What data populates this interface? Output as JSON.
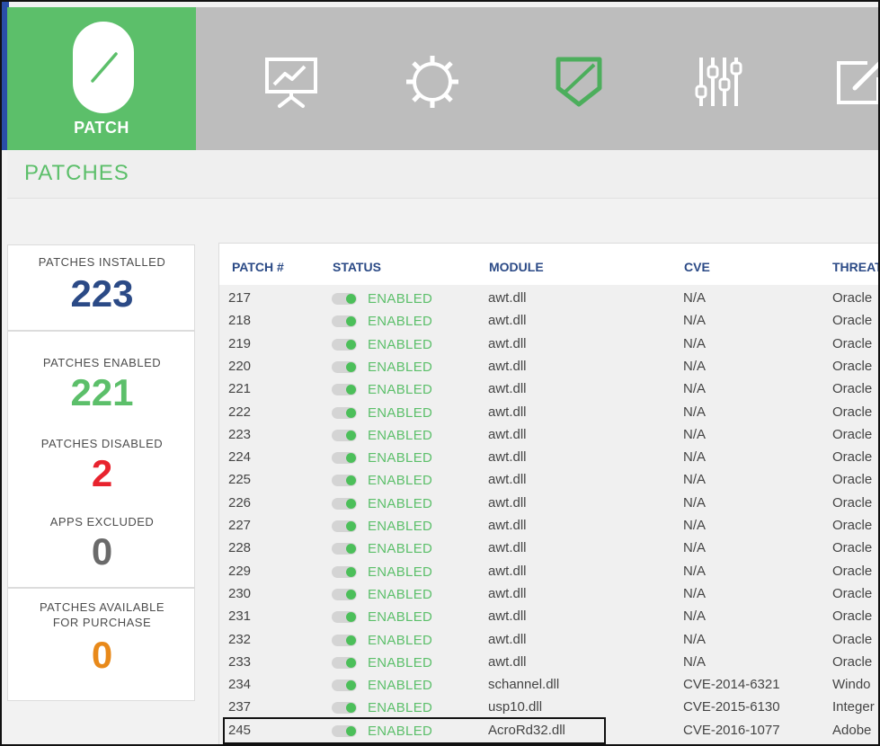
{
  "brand": {
    "label": "PATCH",
    "icon": "slash-icon",
    "color": "#5cbf6a"
  },
  "nav": {
    "items": [
      {
        "name": "dashboard",
        "icon": "presentation-chart-icon"
      },
      {
        "name": "settings",
        "icon": "gear-icon"
      },
      {
        "name": "patch",
        "icon": "shield-slash-icon"
      },
      {
        "name": "controls",
        "icon": "sliders-icon"
      },
      {
        "name": "notes",
        "icon": "edit-icon"
      }
    ]
  },
  "page": {
    "title": "PATCHES"
  },
  "stats": {
    "installed": {
      "label": "PATCHES INSTALLED",
      "value": "223",
      "color": "#2b4a86"
    },
    "enabled": {
      "label": "PATCHES ENABLED",
      "value": "221",
      "color": "#5cbf6a"
    },
    "disabled": {
      "label": "PATCHES DISABLED",
      "value": "2",
      "color": "#e8232e"
    },
    "excluded": {
      "label": "APPS EXCLUDED",
      "value": "0",
      "color": "#6a6a6a"
    },
    "purchase": {
      "label_line1": "PATCHES AVAILABLE",
      "label_line2": "FOR PURCHASE",
      "value": "0",
      "color": "#e8891a"
    }
  },
  "table": {
    "columns": [
      "PATCH #",
      "STATUS",
      "MODULE",
      "CVE",
      "THREAT"
    ],
    "rows": [
      {
        "patch": "217",
        "status": "ENABLED",
        "module": "awt.dll",
        "cve": "N/A",
        "threat": "Oracle"
      },
      {
        "patch": "218",
        "status": "ENABLED",
        "module": "awt.dll",
        "cve": "N/A",
        "threat": "Oracle"
      },
      {
        "patch": "219",
        "status": "ENABLED",
        "module": "awt.dll",
        "cve": "N/A",
        "threat": "Oracle"
      },
      {
        "patch": "220",
        "status": "ENABLED",
        "module": "awt.dll",
        "cve": "N/A",
        "threat": "Oracle"
      },
      {
        "patch": "221",
        "status": "ENABLED",
        "module": "awt.dll",
        "cve": "N/A",
        "threat": "Oracle"
      },
      {
        "patch": "222",
        "status": "ENABLED",
        "module": "awt.dll",
        "cve": "N/A",
        "threat": "Oracle"
      },
      {
        "patch": "223",
        "status": "ENABLED",
        "module": "awt.dll",
        "cve": "N/A",
        "threat": "Oracle"
      },
      {
        "patch": "224",
        "status": "ENABLED",
        "module": "awt.dll",
        "cve": "N/A",
        "threat": "Oracle"
      },
      {
        "patch": "225",
        "status": "ENABLED",
        "module": "awt.dll",
        "cve": "N/A",
        "threat": "Oracle"
      },
      {
        "patch": "226",
        "status": "ENABLED",
        "module": "awt.dll",
        "cve": "N/A",
        "threat": "Oracle"
      },
      {
        "patch": "227",
        "status": "ENABLED",
        "module": "awt.dll",
        "cve": "N/A",
        "threat": "Oracle"
      },
      {
        "patch": "228",
        "status": "ENABLED",
        "module": "awt.dll",
        "cve": "N/A",
        "threat": "Oracle"
      },
      {
        "patch": "229",
        "status": "ENABLED",
        "module": "awt.dll",
        "cve": "N/A",
        "threat": "Oracle"
      },
      {
        "patch": "230",
        "status": "ENABLED",
        "module": "awt.dll",
        "cve": "N/A",
        "threat": "Oracle"
      },
      {
        "patch": "231",
        "status": "ENABLED",
        "module": "awt.dll",
        "cve": "N/A",
        "threat": "Oracle"
      },
      {
        "patch": "232",
        "status": "ENABLED",
        "module": "awt.dll",
        "cve": "N/A",
        "threat": "Oracle"
      },
      {
        "patch": "233",
        "status": "ENABLED",
        "module": "awt.dll",
        "cve": "N/A",
        "threat": "Oracle"
      },
      {
        "patch": "234",
        "status": "ENABLED",
        "module": "schannel.dll",
        "cve": "CVE-2014-6321",
        "threat": "Windo"
      },
      {
        "patch": "237",
        "status": "ENABLED",
        "module": "usp10.dll",
        "cve": "CVE-2015-6130",
        "threat": "Integer"
      },
      {
        "patch": "245",
        "status": "ENABLED",
        "module": "AcroRd32.dll",
        "cve": "CVE-2016-1077",
        "threat": "Adobe"
      }
    ]
  }
}
